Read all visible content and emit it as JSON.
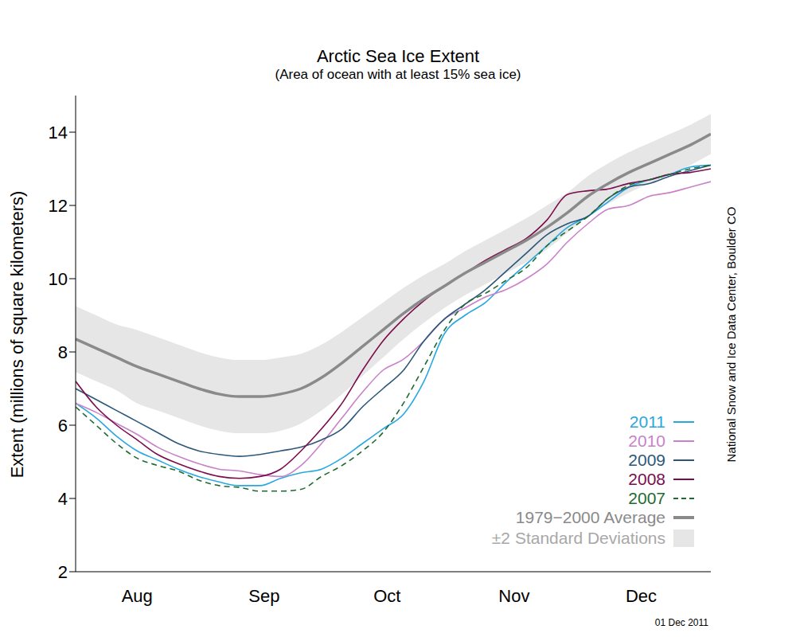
{
  "chart_data": {
    "type": "line",
    "title": "Arctic Sea Ice Extent",
    "subtitle": "(Area of ocean with at least 15% sea ice)",
    "y_label": "Extent (millions of square kilometers)",
    "annotations": [
      "National Snow and Ice Data Center, Boulder CO",
      "01 Dec 2011"
    ],
    "x": [
      0,
      5,
      10,
      15,
      20,
      25,
      30,
      35,
      40,
      45,
      50,
      55,
      60,
      65,
      70,
      75,
      80,
      85,
      90,
      95,
      100,
      105,
      110,
      115,
      120,
      125,
      130,
      135,
      140,
      145,
      150,
      155
    ],
    "xlim": [
      0,
      155
    ],
    "xticks": [
      {
        "value": 15,
        "label": "Aug"
      },
      {
        "value": 46,
        "label": "Sep"
      },
      {
        "value": 76,
        "label": "Oct"
      },
      {
        "value": 107,
        "label": "Nov"
      },
      {
        "value": 138,
        "label": "Dec"
      }
    ],
    "ylim": [
      2,
      15
    ],
    "yticks": [
      2,
      4,
      6,
      8,
      10,
      12,
      14
    ],
    "grid": false,
    "legend": "lower right",
    "series": [
      {
        "name": "2011",
        "color": "#29a8e0",
        "line_style": "solid",
        "values": [
          6.6,
          6.2,
          5.7,
          5.3,
          5.05,
          4.8,
          4.6,
          4.45,
          4.35,
          4.35,
          4.55,
          4.7,
          4.8,
          5.1,
          5.5,
          5.9,
          6.3,
          7.2,
          8.5,
          9.0,
          9.35,
          9.9,
          10.4,
          10.9,
          11.4,
          11.7,
          12.1,
          12.5,
          12.7,
          12.85,
          13.05,
          13.1
        ]
      },
      {
        "name": "2010",
        "color": "#c982c9",
        "line_style": "solid",
        "values": [
          6.6,
          6.35,
          6.05,
          5.75,
          5.4,
          5.15,
          4.95,
          4.8,
          4.75,
          4.65,
          4.6,
          4.9,
          5.5,
          6.2,
          6.9,
          7.5,
          7.8,
          8.3,
          8.9,
          9.2,
          9.5,
          9.7,
          10.0,
          10.4,
          11.0,
          11.5,
          11.9,
          12.0,
          12.25,
          12.35,
          12.5,
          12.65
        ]
      },
      {
        "name": "2009",
        "color": "#2b587a",
        "line_style": "solid",
        "values": [
          7.0,
          6.7,
          6.4,
          6.1,
          5.8,
          5.5,
          5.3,
          5.2,
          5.15,
          5.2,
          5.3,
          5.4,
          5.6,
          5.9,
          6.5,
          7.0,
          7.5,
          8.3,
          8.9,
          9.3,
          9.7,
          10.2,
          10.7,
          11.2,
          11.5,
          11.7,
          12.2,
          12.5,
          12.6,
          12.8,
          12.95,
          13.1
        ]
      },
      {
        "name": "2008",
        "color": "#7b0c4b",
        "line_style": "solid",
        "values": [
          7.2,
          6.5,
          6.0,
          5.6,
          5.2,
          4.95,
          4.75,
          4.6,
          4.55,
          4.6,
          4.8,
          5.3,
          5.9,
          6.6,
          7.5,
          8.3,
          8.9,
          9.4,
          9.8,
          10.15,
          10.5,
          10.8,
          11.1,
          11.6,
          12.3,
          12.4,
          12.45,
          12.6,
          12.7,
          12.85,
          12.9,
          13.0
        ]
      },
      {
        "name": "2007",
        "color": "#1e6b2e",
        "line_style": "dashed",
        "values": [
          6.5,
          6.0,
          5.5,
          5.1,
          4.9,
          4.75,
          4.5,
          4.35,
          4.3,
          4.2,
          4.2,
          4.25,
          4.6,
          4.9,
          5.3,
          5.8,
          6.6,
          7.6,
          8.6,
          9.3,
          9.6,
          9.95,
          10.3,
          10.9,
          11.3,
          11.7,
          12.2,
          12.55,
          12.7,
          12.85,
          13.0,
          13.1
        ]
      },
      {
        "name": "1979−2000 Average",
        "color": "#8a8a8a",
        "line_style": "solid",
        "values": [
          8.35,
          8.1,
          7.85,
          7.6,
          7.4,
          7.2,
          7.0,
          6.85,
          6.78,
          6.78,
          6.85,
          7.0,
          7.3,
          7.7,
          8.15,
          8.6,
          9.05,
          9.45,
          9.8,
          10.15,
          10.45,
          10.75,
          11.05,
          11.4,
          11.8,
          12.25,
          12.6,
          12.9,
          13.15,
          13.4,
          13.65,
          13.95
        ]
      }
    ],
    "band": {
      "name": "±2 Standard Deviations",
      "color": "#e6e6e6",
      "lower": [
        7.45,
        7.2,
        6.95,
        6.6,
        6.4,
        6.2,
        6.0,
        5.85,
        5.78,
        5.78,
        5.85,
        6.05,
        6.4,
        6.85,
        7.35,
        7.85,
        8.35,
        8.8,
        9.2,
        9.55,
        9.85,
        10.15,
        10.45,
        10.8,
        11.25,
        11.7,
        12.05,
        12.35,
        12.6,
        12.85,
        13.1,
        13.4
      ],
      "upper": [
        9.25,
        9.0,
        8.75,
        8.6,
        8.4,
        8.2,
        8.0,
        7.85,
        7.78,
        7.78,
        7.85,
        7.95,
        8.2,
        8.55,
        8.95,
        9.35,
        9.75,
        10.1,
        10.4,
        10.75,
        11.05,
        11.35,
        11.65,
        12.0,
        12.35,
        12.8,
        13.15,
        13.45,
        13.7,
        13.95,
        14.2,
        14.5
      ]
    }
  }
}
